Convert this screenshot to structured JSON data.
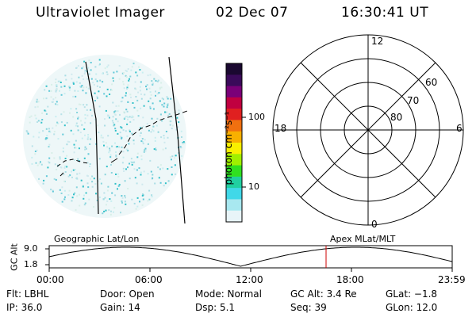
{
  "header": {
    "title": "Ultraviolet Imager",
    "date": "02 Dec 07",
    "time": "16:30:41 UT"
  },
  "colorbar": {
    "label": "photon cm⁻²s⁻¹",
    "scale": "log",
    "ticks": [
      "100",
      "10"
    ],
    "colors": [
      "#1a0830",
      "#3a0a5a",
      "#7a0078",
      "#c00040",
      "#e02020",
      "#f07010",
      "#f8b000",
      "#f8f000",
      "#a0f000",
      "#30e020",
      "#20d0a0",
      "#40d8e8",
      "#a8e8f0",
      "#e8f4f8"
    ]
  },
  "polar_plot": {
    "mlt_labels": [
      "12",
      "18",
      "6",
      "0"
    ],
    "lat_labels": [
      "60",
      "70",
      "80"
    ]
  },
  "timeline": {
    "left_label": "Geographic Lat/Lon",
    "right_label": "Apex  MLat/MLT",
    "y_axis_title": "GC Alt",
    "y_ticks": [
      "9.0",
      "1.8"
    ],
    "x_ticks": [
      "00:00",
      "06:00",
      "12:00",
      "18:00",
      "23:59"
    ],
    "marker_time": "16:30",
    "marker_color": "#cc0000"
  },
  "status": {
    "flt": "Flt: LBHL",
    "ip": "IP: 36.0",
    "door": "Door: Open",
    "gain": "Gain: 14",
    "mode": "Mode: Normal",
    "dsp": "Dsp:    5.1",
    "gcalt": "GC Alt: 3.4 Re",
    "seq": "Seq: 39",
    "glat": "GLat:  −1.8",
    "glon": "GLon:  12.0"
  }
}
